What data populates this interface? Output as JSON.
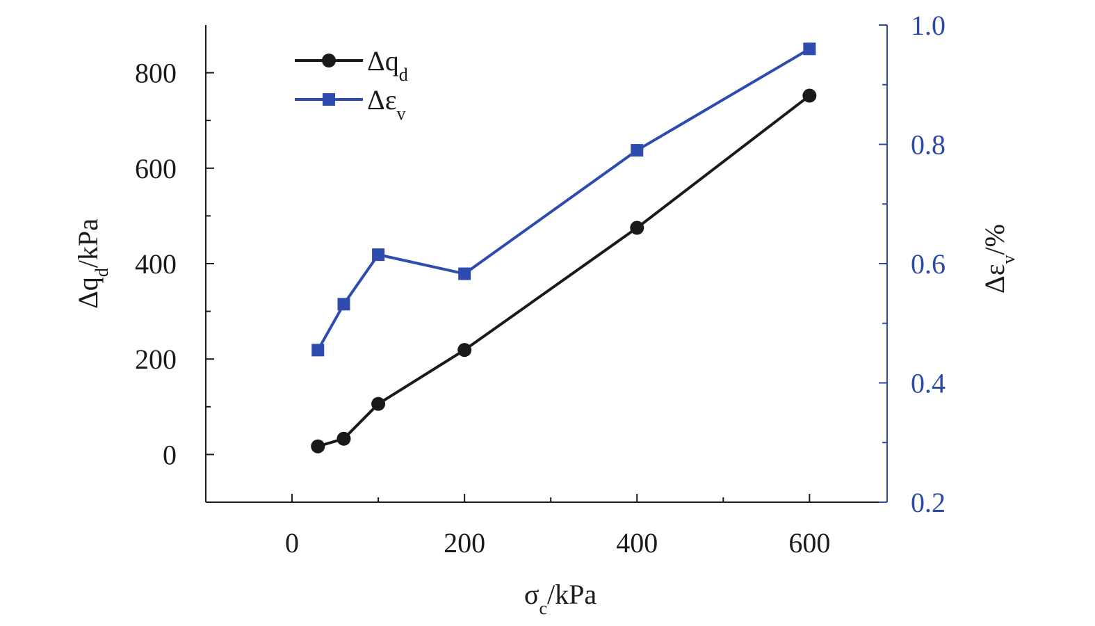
{
  "chart_data": {
    "type": "line",
    "colors": {
      "axis": "#1a1a1a",
      "right_axis": "#2b4aa5",
      "series_qd": "#1a1a1a",
      "series_ev": "#2e4cb0"
    },
    "x_axis": {
      "label_main": "σ",
      "label_sub": "c",
      "label_rest": "/kPa",
      "range": [
        -100,
        690
      ],
      "ticks": [
        0,
        200,
        400,
        600
      ],
      "tick_labels": [
        "0",
        "200",
        "400",
        "600"
      ],
      "minor_ticks": [
        100,
        300,
        500
      ]
    },
    "y_left": {
      "label_main": "Δq",
      "label_sub": "d",
      "label_rest": "/kPa",
      "range": [
        -100,
        900
      ],
      "ticks": [
        0,
        200,
        400,
        600,
        800
      ],
      "tick_labels": [
        "0",
        "200",
        "400",
        "600",
        "800"
      ],
      "minor_ticks": [
        100,
        300,
        500,
        700
      ]
    },
    "y_right": {
      "label_main": "Δε",
      "label_sub": "v",
      "label_rest": "/%",
      "range": [
        0.2,
        1.0
      ],
      "ticks": [
        0.2,
        0.4,
        0.6,
        0.8,
        1.0
      ],
      "tick_labels": [
        "0.2",
        "0.4",
        "0.6",
        "0.8",
        "1.0"
      ],
      "minor_ticks": [
        0.3,
        0.5,
        0.7,
        0.9
      ]
    },
    "legend": {
      "placement": "top-left"
    },
    "series": [
      {
        "name_main": "Δq",
        "name_sub": "d",
        "axis": "left",
        "marker": "circle",
        "x": [
          30,
          60,
          100,
          200,
          400,
          600
        ],
        "y": [
          17,
          33,
          106,
          219,
          475,
          752
        ]
      },
      {
        "name_main": "Δε",
        "name_sub": "v",
        "axis": "right",
        "marker": "square",
        "x": [
          30,
          60,
          100,
          200,
          400,
          600
        ],
        "y": [
          0.455,
          0.532,
          0.615,
          0.583,
          0.79,
          0.96
        ]
      }
    ]
  }
}
